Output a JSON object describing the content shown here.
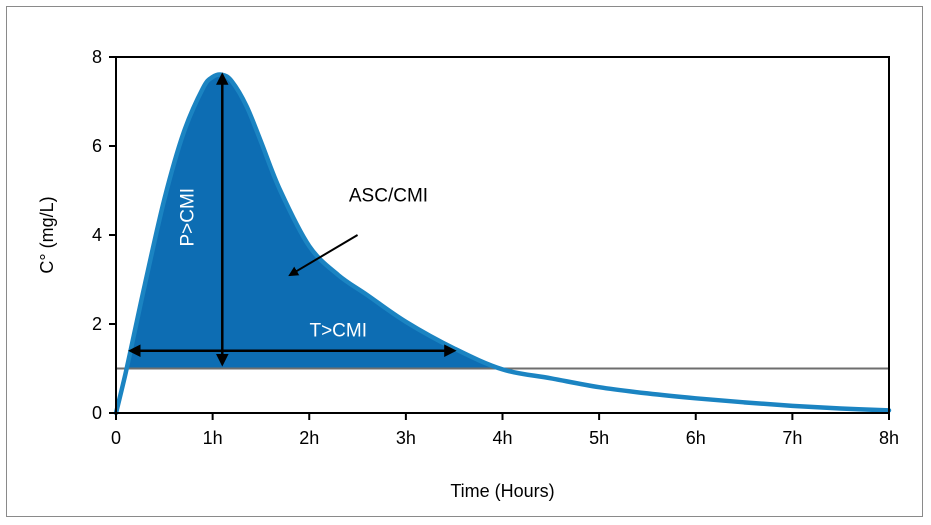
{
  "chart_data": {
    "type": "area",
    "xlabel": "Time (Hours)",
    "ylabel": "C° (mg/L)",
    "xlim": [
      0,
      8
    ],
    "ylim": [
      0,
      8
    ],
    "x_tick_labels": [
      "0",
      "1h",
      "2h",
      "3h",
      "4h",
      "5h",
      "6h",
      "7h",
      "8h"
    ],
    "y_tick_labels": [
      "0",
      "2",
      "4",
      "6",
      "8"
    ],
    "grid": false,
    "series": [
      {
        "x": [
          0,
          0.1,
          0.2,
          0.3,
          0.5,
          0.7,
          0.9,
          1.0,
          1.1,
          1.2,
          1.35,
          1.5,
          1.7,
          2.0,
          2.3,
          2.6,
          3.0,
          3.5,
          4.0,
          4.5,
          5.0,
          5.5,
          6.0,
          6.5,
          7.0,
          7.5,
          8.0
        ],
        "values": [
          0,
          0.9,
          1.9,
          2.9,
          4.8,
          6.3,
          7.3,
          7.55,
          7.6,
          7.45,
          6.9,
          6.1,
          5.0,
          3.75,
          3.1,
          2.65,
          2.05,
          1.45,
          0.98,
          0.78,
          0.58,
          0.44,
          0.33,
          0.24,
          0.16,
          0.1,
          0.06
        ],
        "color": "#1b84c2",
        "fill_color": "#0d6db3",
        "fill_above": 1.0
      }
    ],
    "threshold": {
      "value": 1.0,
      "color": "#6e6e6e"
    },
    "annotations": {
      "auc_label": "ASC/CMI",
      "peak_label": "P>CMI",
      "time_label": "T>CMI",
      "time_arrow": {
        "from": 0.15,
        "to": 3.5,
        "y": 1.4
      },
      "peak_arrow": {
        "x": 1.1,
        "from": 1.1,
        "to": 7.6
      },
      "auc_pointer": {
        "from": [
          2.5,
          4.0
        ],
        "to": [
          1.8,
          3.1
        ]
      }
    }
  }
}
